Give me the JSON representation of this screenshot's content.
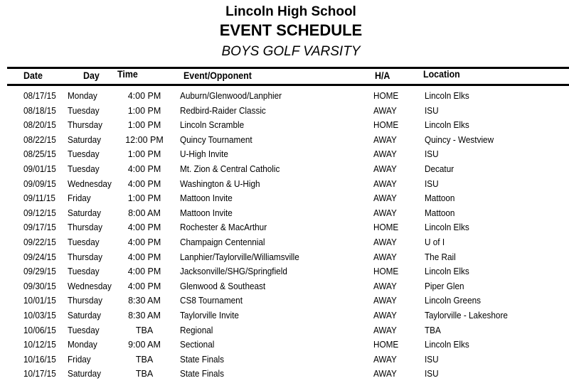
{
  "header": {
    "school": "Lincoln High School",
    "title": "EVENT SCHEDULE",
    "team": "BOYS GOLF VARSITY"
  },
  "columns": {
    "date": "Date",
    "day": "Day",
    "time": "Time",
    "event": "Event/Opponent",
    "ha": "H/A",
    "location": "Location"
  },
  "rows": [
    {
      "date": "08/17/15",
      "day": "Monday",
      "time": "4:00 PM",
      "event": "Auburn/Glenwood/Lanphier",
      "ha": "HOME",
      "location": "Lincoln Elks"
    },
    {
      "date": "08/18/15",
      "day": "Tuesday",
      "time": "1:00 PM",
      "event": "Redbird-Raider Classic",
      "ha": "AWAY",
      "location": "ISU"
    },
    {
      "date": "08/20/15",
      "day": "Thursday",
      "time": "1:00 PM",
      "event": "Lincoln Scramble",
      "ha": "HOME",
      "location": "Lincoln Elks"
    },
    {
      "date": "08/22/15",
      "day": "Saturday",
      "time": "12:00 PM",
      "event": "Quincy Tournament",
      "ha": "AWAY",
      "location": "Quincy - Westview"
    },
    {
      "date": "08/25/15",
      "day": "Tuesday",
      "time": "1:00 PM",
      "event": "U-High Invite",
      "ha": "AWAY",
      "location": "ISU"
    },
    {
      "date": "09/01/15",
      "day": "Tuesday",
      "time": "4:00 PM",
      "event": "Mt. Zion & Central Catholic",
      "ha": "AWAY",
      "location": "Decatur"
    },
    {
      "date": "09/09/15",
      "day": "Wednesday",
      "time": "4:00 PM",
      "event": "Washington & U-High",
      "ha": "AWAY",
      "location": "ISU"
    },
    {
      "date": "09/11/15",
      "day": "Friday",
      "time": "1:00 PM",
      "event": "Mattoon Invite",
      "ha": "AWAY",
      "location": "Mattoon"
    },
    {
      "date": "09/12/15",
      "day": "Saturday",
      "time": "8:00 AM",
      "event": "Mattoon Invite",
      "ha": "AWAY",
      "location": "Mattoon"
    },
    {
      "date": "09/17/15",
      "day": "Thursday",
      "time": "4:00 PM",
      "event": "Rochester & MacArthur",
      "ha": "HOME",
      "location": "Lincoln Elks"
    },
    {
      "date": "09/22/15",
      "day": "Tuesday",
      "time": "4:00 PM",
      "event": "Champaign Centennial",
      "ha": "AWAY",
      "location": "U of I"
    },
    {
      "date": "09/24/15",
      "day": "Thursday",
      "time": "4:00 PM",
      "event": "Lanphier/Taylorville/Williamsville",
      "ha": "AWAY",
      "location": "The Rail"
    },
    {
      "date": "09/29/15",
      "day": "Tuesday",
      "time": "4:00 PM",
      "event": "Jacksonville/SHG/Springfield",
      "ha": "HOME",
      "location": "Lincoln Elks"
    },
    {
      "date": "09/30/15",
      "day": "Wednesday",
      "time": "4:00 PM",
      "event": "Glenwood & Southeast",
      "ha": "AWAY",
      "location": "Piper Glen"
    },
    {
      "date": "10/01/15",
      "day": "Thursday",
      "time": "8:30 AM",
      "event": "CS8 Tournament",
      "ha": "AWAY",
      "location": "Lincoln Greens"
    },
    {
      "date": "10/03/15",
      "day": "Saturday",
      "time": "8:30 AM",
      "event": "Taylorville Invite",
      "ha": "AWAY",
      "location": "Taylorville - Lakeshore"
    },
    {
      "date": "10/06/15",
      "day": "Tuesday",
      "time": "TBA",
      "event": "Regional",
      "ha": "AWAY",
      "location": "TBA"
    },
    {
      "date": "10/12/15",
      "day": "Monday",
      "time": "9:00 AM",
      "event": "Sectional",
      "ha": "HOME",
      "location": "Lincoln Elks"
    },
    {
      "date": "10/16/15",
      "day": "Friday",
      "time": "TBA",
      "event": "State Finals",
      "ha": "AWAY",
      "location": "ISU"
    },
    {
      "date": "10/17/15",
      "day": "Saturday",
      "time": "TBA",
      "event": "State Finals",
      "ha": "AWAY",
      "location": "ISU"
    }
  ]
}
